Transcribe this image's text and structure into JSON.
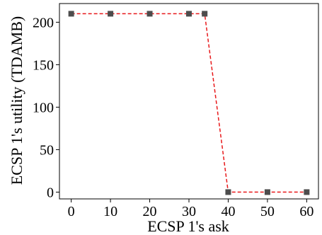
{
  "chart_data": {
    "type": "line",
    "title": "",
    "xlabel": "ECSP 1's ask",
    "ylabel": "ECSP 1's utility (TDAMB)",
    "xlim": [
      -3,
      63
    ],
    "ylim": [
      -8,
      222
    ],
    "xticks": [
      0,
      10,
      20,
      30,
      40,
      50,
      60
    ],
    "yticks": [
      0,
      50,
      100,
      150,
      200
    ],
    "grid": false,
    "legend": "none",
    "series": [
      {
        "line_color": "#e8191b",
        "line_style": "dashed",
        "marker": "square",
        "marker_color": "#4d4d4d",
        "points": [
          {
            "x": 0,
            "y": 210
          },
          {
            "x": 10,
            "y": 210
          },
          {
            "x": 20,
            "y": 210
          },
          {
            "x": 30,
            "y": 210
          },
          {
            "x": 34,
            "y": 210
          },
          {
            "x": 40,
            "y": 0
          },
          {
            "x": 50,
            "y": 0
          },
          {
            "x": 60,
            "y": 0
          }
        ]
      }
    ]
  }
}
